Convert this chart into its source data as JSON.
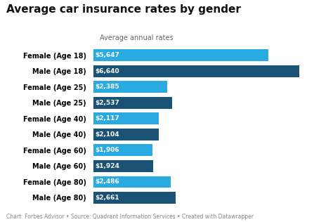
{
  "title": "Average car insurance rates by gender",
  "subtitle": "Average annual rates",
  "categories": [
    "Female (Age 18)",
    "Male (Age 18)",
    "Female (Age 25)",
    "Male (Age 25)",
    "Female (Age 40)",
    "Male (Age 40)",
    "Female (Age 60)",
    "Male (Age 60)",
    "Female (Age 80)",
    "Male (Age 80)"
  ],
  "values": [
    5647,
    6640,
    2385,
    2537,
    2117,
    2104,
    1906,
    1924,
    2486,
    2661
  ],
  "colors": [
    "#29abe2",
    "#1a5276",
    "#29abe2",
    "#1a5276",
    "#29abe2",
    "#1a5276",
    "#29abe2",
    "#1a5276",
    "#29abe2",
    "#1a5276"
  ],
  "labels": [
    "$5,647",
    "$6,640",
    "$2,385",
    "$2,537",
    "$2,117",
    "$2,104",
    "$1,906",
    "$1,924",
    "$2,486",
    "$2,661"
  ],
  "footer": "Chart: Forbes Advisor • Source: Quadrant Information Services • Created with Datawrapper",
  "background_color": "#ffffff",
  "bar_height": 0.75,
  "xlim": [
    0,
    7400
  ],
  "title_fontsize": 11,
  "subtitle_fontsize": 7,
  "label_fontsize": 6.5,
  "ytick_fontsize": 7,
  "footer_fontsize": 5.5
}
